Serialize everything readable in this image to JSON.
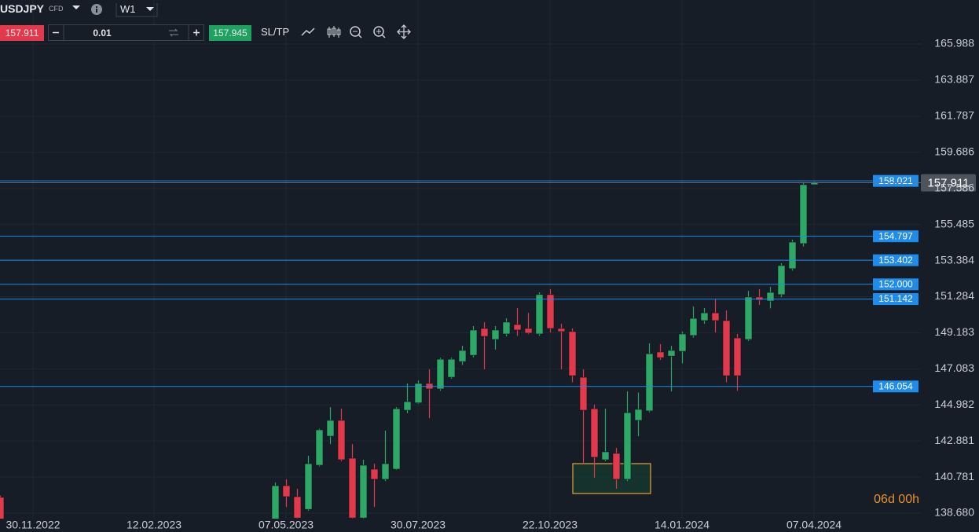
{
  "toolbar": {
    "symbol": "USDJPY",
    "symbol_type": "CFD",
    "timeframe": "W1",
    "sell_price": "157.911",
    "volume": "0.01",
    "buy_price": "157.945",
    "sltp": "SL/TP"
  },
  "chart_data": {
    "type": "candlestick",
    "open": [
      139.6,
      null,
      null,
      null,
      null,
      null,
      null,
      null,
      null,
      null,
      null,
      null,
      null,
      null,
      null,
      null,
      null,
      null,
      null,
      null,
      null,
      null,
      null,
      null,
      null,
      138.0,
      140.28,
      139.64,
      138.9,
      141.47,
      143.16,
      144.08,
      141.88,
      138.4,
      141.24,
      140.65,
      141.24,
      144.67,
      145.1,
      146.23,
      145.91,
      146.59,
      147.5,
      147.87,
      149.43,
      148.79,
      149.11,
      149.66,
      149.43,
      149.11,
      151.4,
      149.43,
      149.25,
      146.59,
      144.76,
      141.79,
      142.16,
      140.65,
      144.08,
      144.63,
      148.06,
      147.82,
      148.1,
      149.02,
      149.89,
      150.34,
      149.89,
      148.88,
      148.79,
      151.26,
      151.03,
      151.4,
      152.91,
      154.37,
      157.8
    ],
    "high": [
      139.7,
      null,
      null,
      null,
      null,
      null,
      null,
      null,
      null,
      null,
      null,
      null,
      null,
      null,
      null,
      null,
      null,
      null,
      null,
      null,
      null,
      null,
      null,
      null,
      null,
      140.46,
      140.65,
      140.1,
      142.02,
      143.6,
      144.85,
      144.76,
      142.7,
      141.79,
      141.56,
      143.48,
      144.85,
      146.23,
      146.4,
      147.05,
      147.73,
      147.73,
      148.42,
      149.57,
      149.8,
      149.57,
      150.02,
      150.62,
      150.34,
      151.53,
      151.72,
      149.7,
      149.43,
      147.05,
      145.0,
      144.76,
      142.48,
      145.77,
      145.7,
      148.56,
      148.52,
      148.42,
      149.25,
      150.71,
      150.62,
      151.17,
      150.48,
      149.11,
      151.62,
      151.72,
      151.85,
      153.23,
      154.6,
      157.94,
      157.96
    ],
    "low": [
      137.8,
      null,
      null,
      null,
      null,
      null,
      null,
      null,
      null,
      null,
      null,
      null,
      null,
      null,
      null,
      null,
      null,
      null,
      null,
      null,
      null,
      null,
      null,
      null,
      null,
      138.0,
      139.04,
      138.0,
      138.82,
      141.4,
      142.7,
      141.7,
      138.0,
      138.3,
      139.04,
      140.55,
      141.2,
      144.5,
      145.05,
      144.21,
      145.8,
      146.5,
      147.3,
      147.75,
      147.05,
      148.2,
      148.97,
      149.0,
      149.1,
      149.0,
      149.2,
      147.05,
      146.3,
      141.56,
      140.74,
      141.7,
      140.1,
      140.55,
      143.16,
      144.55,
      147.6,
      145.77,
      147.4,
      148.9,
      149.7,
      149.2,
      146.3,
      145.8,
      148.7,
      150.8,
      150.6,
      151.25,
      152.8,
      154.2,
      157.8
    ],
    "close": [
      138.0,
      null,
      null,
      null,
      null,
      null,
      null,
      null,
      null,
      null,
      null,
      null,
      null,
      null,
      null,
      null,
      null,
      null,
      null,
      null,
      null,
      null,
      null,
      null,
      null,
      140.28,
      139.64,
      138.4,
      141.56,
      143.53,
      144.08,
      141.79,
      138.4,
      141.47,
      140.65,
      141.56,
      144.76,
      145.17,
      146.23,
      145.91,
      147.64,
      147.64,
      148.15,
      149.34,
      148.97,
      149.34,
      149.8,
      149.34,
      149.16,
      151.4,
      149.43,
      149.25,
      146.68,
      144.67,
      141.93,
      142.25,
      140.65,
      144.53,
      144.72,
      147.96,
      147.73,
      148.15,
      149.11,
      150.02,
      150.34,
      149.89,
      146.68,
      146.68,
      151.26,
      151.08,
      151.53,
      153.09,
      154.46,
      157.8,
      157.91
    ],
    "up_color": "#2ea866",
    "down_color": "#e23a4c",
    "ylim": [
      138.36,
      168.55
    ],
    "yticks": [
      {
        "value": 138.68,
        "label": "138.680"
      },
      140.781,
      142.881,
      144.982,
      147.083,
      149.183,
      151.284,
      153.384,
      155.485,
      157.586,
      159.686,
      161.787,
      163.887,
      165.988
    ],
    "xlim": [
      0,
      89
    ],
    "xticks": [
      {
        "value": 3,
        "label": "30.11.2022"
      },
      {
        "value": 14,
        "label": "12.02.2023"
      },
      {
        "value": 26,
        "label": "07.05.2023"
      },
      {
        "value": 38,
        "label": "30.07.2023"
      },
      {
        "value": 50,
        "label": "22.10.2023"
      },
      {
        "value": 62,
        "label": "14.01.2024"
      },
      {
        "value": 74,
        "label": "07.04.2024"
      }
    ],
    "grid": true,
    "levels": {
      "values": [
        158.021,
        154.797,
        153.402,
        152.0,
        151.142,
        146.054
      ],
      "value_labels": [
        "158.021",
        "154.797",
        "153.402",
        "152.000",
        "151.142",
        "146.054"
      ],
      "color": "#1f8bea"
    },
    "current_price": 157.911,
    "countdown": "06d 00h"
  }
}
